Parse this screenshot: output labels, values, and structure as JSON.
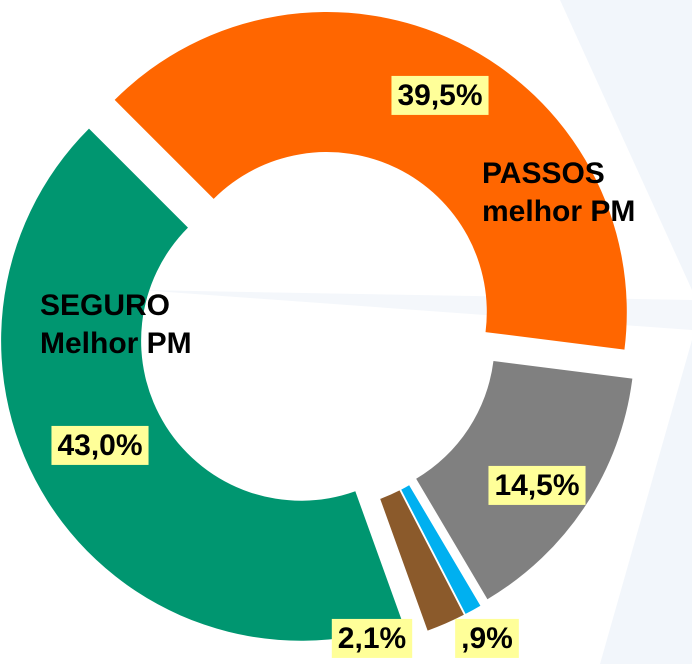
{
  "chart_data": {
    "type": "donut",
    "categories": [
      "PASSOS melhor PM",
      null,
      null,
      null,
      "SEGURO Melhor PM"
    ],
    "values": [
      39.5,
      14.5,
      0.9,
      2.1,
      43.0
    ],
    "value_labels": [
      "39,5%",
      "14,5%",
      ",9%",
      "2,1%",
      "43,0%"
    ],
    "colors": [
      "#ff6600",
      "#808080",
      "#00b0f0",
      "#8b5a2b",
      "#009670"
    ]
  }
}
